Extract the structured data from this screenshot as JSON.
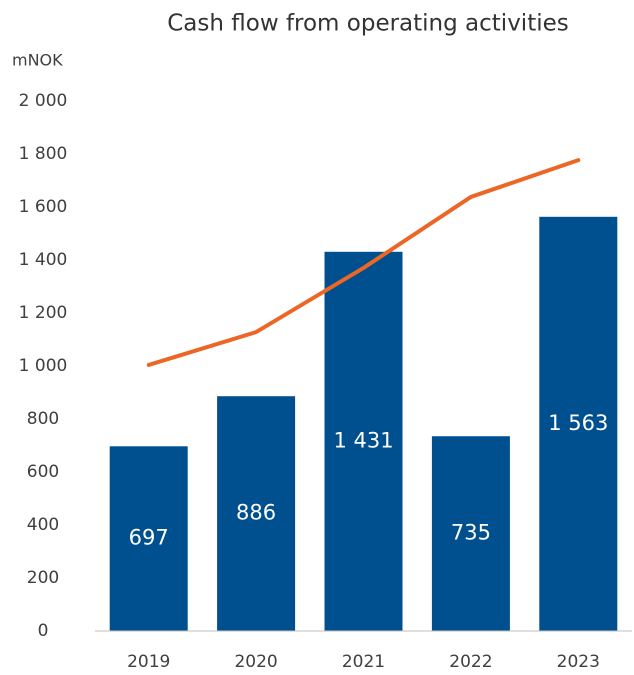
{
  "chart_data": {
    "type": "bar",
    "title": "Cash flow from operating activities",
    "y_label": "mNOK",
    "categories": [
      "2019",
      "2020",
      "2021",
      "2022",
      "2023"
    ],
    "series": [
      {
        "type": "bar",
        "color": "#00508f",
        "values": [
          697,
          886,
          1431,
          735,
          1563
        ],
        "value_labels": [
          "697",
          "886",
          "1 431",
          "735",
          "1 563"
        ]
      },
      {
        "type": "line",
        "color": "#ec6625",
        "values": [
          1004,
          1128,
          1370,
          1638,
          1777
        ]
      }
    ],
    "ylim": [
      0,
      2000
    ],
    "yticks": [
      0,
      200,
      400,
      600,
      800,
      {
        "value": 1000,
        "label": "1 000"
      },
      {
        "value": 1200,
        "label": "1 200"
      },
      {
        "value": 1400,
        "label": "1 400"
      },
      {
        "value": 1600,
        "label": "1 600"
      },
      {
        "value": 1800,
        "label": "1 800"
      },
      {
        "value": 2000,
        "label": "2 000"
      }
    ],
    "grid": false
  }
}
